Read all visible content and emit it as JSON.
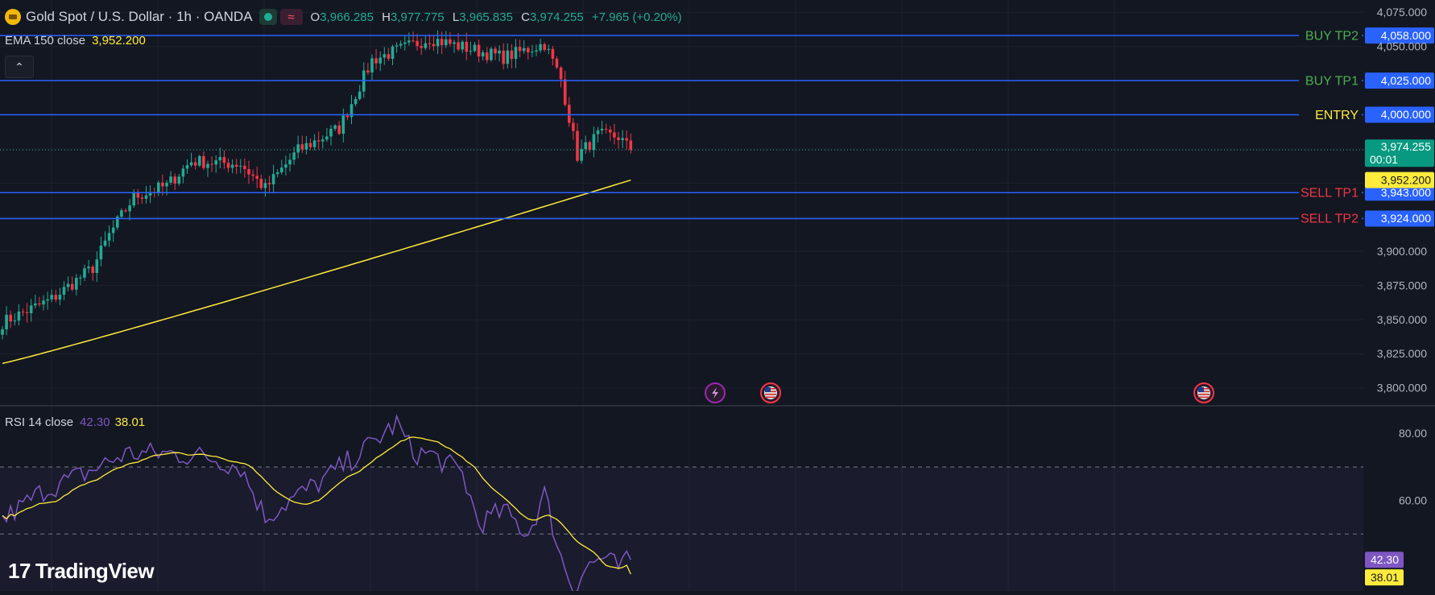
{
  "legend": {
    "symbol_icon": "gold-coin-icon",
    "title": "Gold Spot / U.S. Dollar · 1h · OANDA",
    "market_status_icon": "market-open-dot-icon",
    "wave_icon": "wave-icon",
    "wave_glyph": "≈",
    "ohlc": {
      "o_label": "O",
      "o": "3,966.285",
      "h_label": "H",
      "h": "3,977.775",
      "l_label": "L",
      "l": "3,965.835",
      "c_label": "C",
      "c": "3,974.255",
      "change": "+7.965 (+0.20%)"
    }
  },
  "ema_legend": {
    "label": "EMA 150 close",
    "value": "3,952.200"
  },
  "collapse_button": {
    "icon": "chevron-up-icon",
    "glyph": "⌃"
  },
  "rsi_legend": {
    "label": "RSI 14 close",
    "rsi_value": "42.30",
    "ma_value": "38.01"
  },
  "branding": {
    "logo_icon": "tradingview-logo-icon",
    "mark": "17",
    "text": "TradingView"
  },
  "colors": {
    "background": "#131722",
    "grid": "#1e222d",
    "up": "#22ab94",
    "down": "#f23645",
    "level_line": "#2962ff",
    "ema": "#ffeb3b",
    "rsi": "#7e57c2",
    "rsi_ma": "#ffeb3b",
    "buy_label": "#4caf50",
    "sell_label": "#f23645",
    "entry_label": "#ffeb3b"
  },
  "chart_data": [
    {
      "type": "candlestick",
      "ylim": [
        3787,
        4084
      ],
      "y_ticks": [
        "4,075.000",
        "4,050.000",
        "3,900.000",
        "3,875.000",
        "3,850.000",
        "3,825.000",
        "3,800.000"
      ],
      "y_tick_values": [
        4075,
        4050,
        3900,
        3875,
        3850,
        3825,
        3800
      ],
      "current_price": {
        "value": 3974.255,
        "label": "3,974.255",
        "countdown": "00:01"
      },
      "ema": {
        "value": 3952.2,
        "label": "3,952.200"
      },
      "levels": [
        {
          "name": "BUY TP2",
          "value": 4058,
          "label": "4,058.000",
          "kind": "buy"
        },
        {
          "name": "BUY TP1",
          "value": 4025,
          "label": "4,025.000",
          "kind": "buy"
        },
        {
          "name": "ENTRY",
          "value": 4000,
          "label": "4,000.000",
          "kind": "entry"
        },
        {
          "name": "SELL TP1",
          "value": 3943,
          "label": "3,943.000",
          "kind": "sell"
        },
        {
          "name": "SELL TP2",
          "value": 3924,
          "label": "3,924.000",
          "kind": "sell"
        }
      ],
      "events": [
        {
          "icon": "lightning-event-icon",
          "bar": 102
        },
        {
          "icon": "us-flag-event-icon",
          "bar": 110
        },
        {
          "icon": "us-flag-event-icon",
          "bar": 172
        }
      ]
    },
    {
      "type": "line",
      "ylim": [
        33,
        88
      ],
      "y_ticks": [
        "80.00",
        "60.00"
      ],
      "y_tick_values": [
        80,
        60
      ],
      "bands": {
        "upper": 70,
        "middle": 50,
        "lower": 30
      },
      "rsi_label": "42.30",
      "rsi_value": 42.3,
      "ma_label": "38.01",
      "ma_value": 38.01
    }
  ]
}
